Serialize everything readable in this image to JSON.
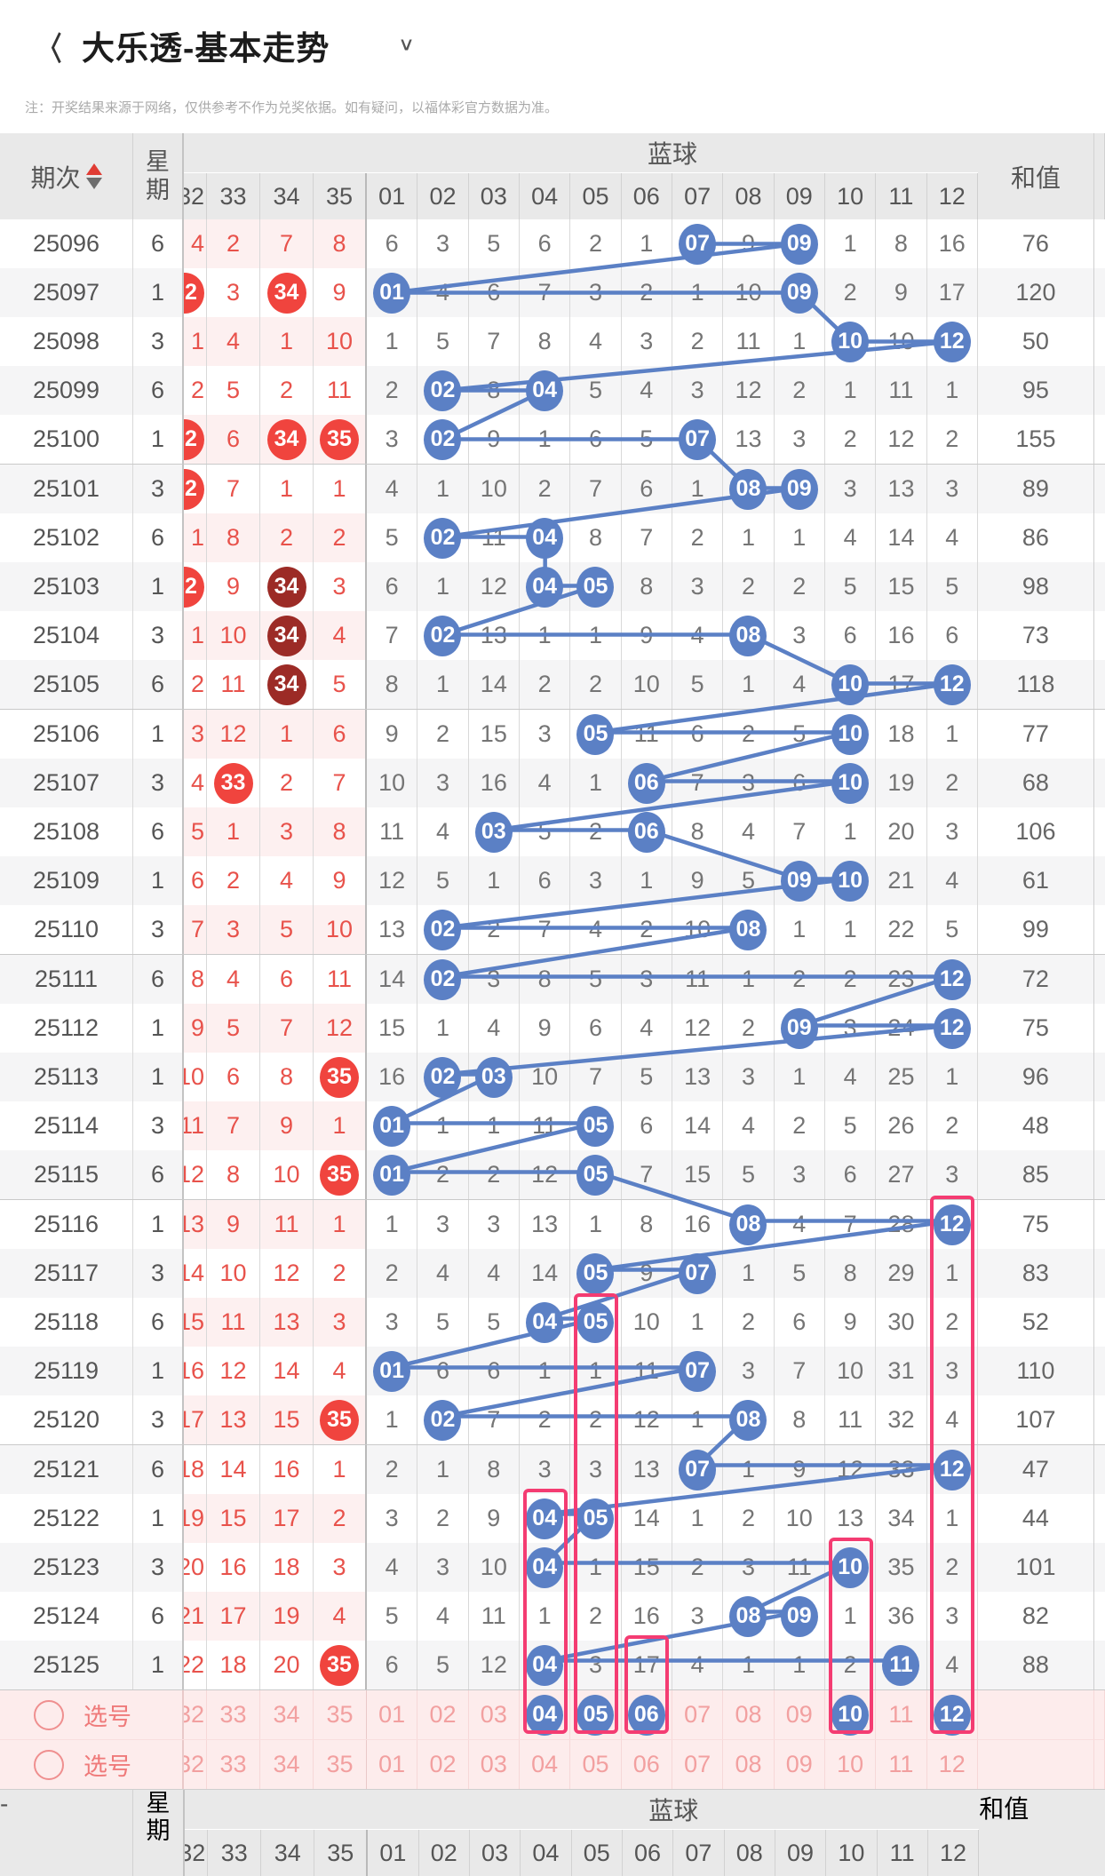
{
  "topbar": {
    "title": "大乐透-基本走势"
  },
  "note": "注：开奖结果来源于网络，仅供参考不作为兑奖依据。如有疑问，以福体彩官方数据为准。",
  "colors": {
    "blue": "#5b80c5",
    "red_circle": "#f0443e",
    "dark_red_circle": "#9c2b26",
    "red_text": "#e8524b",
    "pink_box": "#f43c72",
    "selection_bg": "#fdecec",
    "header_bg": "#e9e9e9",
    "zebra_main": "#f5f5f6",
    "zebra_red": "#fdf0f0"
  },
  "trend": {
    "header": {
      "period": "期次",
      "week": "星期",
      "blue_group": "蓝球",
      "sum": "和值",
      "red_cols": [
        "32",
        "33",
        "34",
        "35"
      ],
      "blue_cols": [
        "01",
        "02",
        "03",
        "04",
        "05",
        "06",
        "07",
        "08",
        "09",
        "10",
        "11",
        "12"
      ]
    },
    "rows": [
      {
        "period": "25096",
        "week": "6",
        "reds": [
          "4",
          "2",
          "7",
          "8"
        ],
        "red_hits": [],
        "red_dark": [],
        "blues": [
          "6",
          "3",
          "5",
          "6",
          "2",
          "1",
          "07",
          "9",
          "09",
          "1",
          "8",
          "16"
        ],
        "blue_hits": [
          7,
          9
        ],
        "sum": "76"
      },
      {
        "period": "25097",
        "week": "1",
        "reds": [
          "32",
          "3",
          "34",
          "9"
        ],
        "red_hits": [
          0,
          2
        ],
        "red_dark": [],
        "blues": [
          "01",
          "4",
          "6",
          "7",
          "3",
          "2",
          "1",
          "10",
          "09",
          "2",
          "9",
          "17"
        ],
        "blue_hits": [
          1,
          9
        ],
        "sum": "120"
      },
      {
        "period": "25098",
        "week": "3",
        "reds": [
          "1",
          "4",
          "1",
          "10"
        ],
        "red_hits": [],
        "red_dark": [],
        "blues": [
          "1",
          "5",
          "7",
          "8",
          "4",
          "3",
          "2",
          "11",
          "1",
          "10",
          "10",
          "12"
        ],
        "blue_hits": [
          10,
          12
        ],
        "sum": "50"
      },
      {
        "period": "25099",
        "week": "6",
        "reds": [
          "2",
          "5",
          "2",
          "11"
        ],
        "red_hits": [],
        "red_dark": [],
        "blues": [
          "2",
          "02",
          "8",
          "04",
          "5",
          "4",
          "3",
          "12",
          "2",
          "1",
          "11",
          "1"
        ],
        "blue_hits": [
          2,
          4
        ],
        "sum": "95"
      },
      {
        "period": "25100",
        "week": "1",
        "reds": [
          "32",
          "6",
          "34",
          "35"
        ],
        "red_hits": [
          0,
          2,
          3
        ],
        "red_dark": [],
        "blues": [
          "3",
          "02",
          "9",
          "1",
          "6",
          "5",
          "07",
          "13",
          "3",
          "2",
          "12",
          "2"
        ],
        "blue_hits": [
          2,
          7
        ],
        "sum": "155"
      },
      {
        "period": "25101",
        "week": "3",
        "reds": [
          "32",
          "7",
          "1",
          "1"
        ],
        "red_hits": [
          0
        ],
        "red_dark": [],
        "blues": [
          "4",
          "1",
          "10",
          "2",
          "7",
          "6",
          "1",
          "08",
          "09",
          "3",
          "13",
          "3"
        ],
        "blue_hits": [
          8,
          9
        ],
        "sum": "89"
      },
      {
        "period": "25102",
        "week": "6",
        "reds": [
          "1",
          "8",
          "2",
          "2"
        ],
        "red_hits": [],
        "red_dark": [],
        "blues": [
          "5",
          "02",
          "11",
          "04",
          "8",
          "7",
          "2",
          "1",
          "1",
          "4",
          "14",
          "4"
        ],
        "blue_hits": [
          2,
          4
        ],
        "sum": "86"
      },
      {
        "period": "25103",
        "week": "1",
        "reds": [
          "32",
          "9",
          "34",
          "3"
        ],
        "red_hits": [
          0,
          2
        ],
        "red_dark": [
          2
        ],
        "blues": [
          "6",
          "1",
          "12",
          "04",
          "05",
          "8",
          "3",
          "2",
          "2",
          "5",
          "15",
          "5"
        ],
        "blue_hits": [
          4,
          5
        ],
        "sum": "98"
      },
      {
        "period": "25104",
        "week": "3",
        "reds": [
          "1",
          "10",
          "34",
          "4"
        ],
        "red_hits": [
          2
        ],
        "red_dark": [
          2
        ],
        "blues": [
          "7",
          "02",
          "13",
          "1",
          "1",
          "9",
          "4",
          "08",
          "3",
          "6",
          "16",
          "6"
        ],
        "blue_hits": [
          2,
          8
        ],
        "sum": "73"
      },
      {
        "period": "25105",
        "week": "6",
        "reds": [
          "2",
          "11",
          "34",
          "5"
        ],
        "red_hits": [
          2
        ],
        "red_dark": [
          2
        ],
        "blues": [
          "8",
          "1",
          "14",
          "2",
          "2",
          "10",
          "5",
          "1",
          "4",
          "10",
          "17",
          "12"
        ],
        "blue_hits": [
          10,
          12
        ],
        "sum": "118"
      },
      {
        "period": "25106",
        "week": "1",
        "reds": [
          "3",
          "12",
          "1",
          "6"
        ],
        "red_hits": [],
        "red_dark": [],
        "blues": [
          "9",
          "2",
          "15",
          "3",
          "05",
          "11",
          "6",
          "2",
          "5",
          "10",
          "18",
          "1"
        ],
        "blue_hits": [
          5,
          10
        ],
        "sum": "77"
      },
      {
        "period": "25107",
        "week": "3",
        "reds": [
          "4",
          "33",
          "2",
          "7"
        ],
        "red_hits": [
          1
        ],
        "red_dark": [],
        "blues": [
          "10",
          "3",
          "16",
          "4",
          "1",
          "06",
          "7",
          "3",
          "6",
          "10",
          "19",
          "2"
        ],
        "blue_hits": [
          6,
          10
        ],
        "sum": "68"
      },
      {
        "period": "25108",
        "week": "6",
        "reds": [
          "5",
          "1",
          "3",
          "8"
        ],
        "red_hits": [],
        "red_dark": [],
        "blues": [
          "11",
          "4",
          "03",
          "5",
          "2",
          "06",
          "8",
          "4",
          "7",
          "1",
          "20",
          "3"
        ],
        "blue_hits": [
          3,
          6
        ],
        "sum": "106"
      },
      {
        "period": "25109",
        "week": "1",
        "reds": [
          "6",
          "2",
          "4",
          "9"
        ],
        "red_hits": [],
        "red_dark": [],
        "blues": [
          "12",
          "5",
          "1",
          "6",
          "3",
          "1",
          "9",
          "5",
          "09",
          "10",
          "21",
          "4"
        ],
        "blue_hits": [
          9,
          10
        ],
        "sum": "61"
      },
      {
        "period": "25110",
        "week": "3",
        "reds": [
          "7",
          "3",
          "5",
          "10"
        ],
        "red_hits": [],
        "red_dark": [],
        "blues": [
          "13",
          "02",
          "2",
          "7",
          "4",
          "2",
          "10",
          "08",
          "1",
          "1",
          "22",
          "5"
        ],
        "blue_hits": [
          2,
          8
        ],
        "sum": "99"
      },
      {
        "period": "25111",
        "week": "6",
        "reds": [
          "8",
          "4",
          "6",
          "11"
        ],
        "red_hits": [],
        "red_dark": [],
        "blues": [
          "14",
          "02",
          "3",
          "8",
          "5",
          "3",
          "11",
          "1",
          "2",
          "2",
          "23",
          "12"
        ],
        "blue_hits": [
          2,
          12
        ],
        "sum": "72"
      },
      {
        "period": "25112",
        "week": "1",
        "reds": [
          "9",
          "5",
          "7",
          "12"
        ],
        "red_hits": [],
        "red_dark": [],
        "blues": [
          "15",
          "1",
          "4",
          "9",
          "6",
          "4",
          "12",
          "2",
          "09",
          "3",
          "24",
          "12"
        ],
        "blue_hits": [
          9,
          12
        ],
        "sum": "75"
      },
      {
        "period": "25113",
        "week": "1",
        "reds": [
          "10",
          "6",
          "8",
          "35"
        ],
        "red_hits": [
          3
        ],
        "red_dark": [],
        "blues": [
          "16",
          "02",
          "03",
          "10",
          "7",
          "5",
          "13",
          "3",
          "1",
          "4",
          "25",
          "1"
        ],
        "blue_hits": [
          2,
          3
        ],
        "sum": "96"
      },
      {
        "period": "25114",
        "week": "3",
        "reds": [
          "11",
          "7",
          "9",
          "1"
        ],
        "red_hits": [],
        "red_dark": [],
        "blues": [
          "01",
          "1",
          "1",
          "11",
          "05",
          "6",
          "14",
          "4",
          "2",
          "5",
          "26",
          "2"
        ],
        "blue_hits": [
          1,
          5
        ],
        "sum": "48"
      },
      {
        "period": "25115",
        "week": "6",
        "reds": [
          "12",
          "8",
          "10",
          "35"
        ],
        "red_hits": [
          3
        ],
        "red_dark": [],
        "blues": [
          "01",
          "2",
          "2",
          "12",
          "05",
          "7",
          "15",
          "5",
          "3",
          "6",
          "27",
          "3"
        ],
        "blue_hits": [
          1,
          5
        ],
        "sum": "85"
      },
      {
        "period": "25116",
        "week": "1",
        "reds": [
          "13",
          "9",
          "11",
          "1"
        ],
        "red_hits": [],
        "red_dark": [],
        "blues": [
          "1",
          "3",
          "3",
          "13",
          "1",
          "8",
          "16",
          "08",
          "4",
          "7",
          "28",
          "12"
        ],
        "blue_hits": [
          8,
          12
        ],
        "sum": "75"
      },
      {
        "period": "25117",
        "week": "3",
        "reds": [
          "14",
          "10",
          "12",
          "2"
        ],
        "red_hits": [],
        "red_dark": [],
        "blues": [
          "2",
          "4",
          "4",
          "14",
          "05",
          "9",
          "07",
          "1",
          "5",
          "8",
          "29",
          "1"
        ],
        "blue_hits": [
          5,
          7
        ],
        "sum": "83"
      },
      {
        "period": "25118",
        "week": "6",
        "reds": [
          "15",
          "11",
          "13",
          "3"
        ],
        "red_hits": [],
        "red_dark": [],
        "blues": [
          "3",
          "5",
          "5",
          "04",
          "05",
          "10",
          "1",
          "2",
          "6",
          "9",
          "30",
          "2"
        ],
        "blue_hits": [
          4,
          5
        ],
        "sum": "52"
      },
      {
        "period": "25119",
        "week": "1",
        "reds": [
          "16",
          "12",
          "14",
          "4"
        ],
        "red_hits": [],
        "red_dark": [],
        "blues": [
          "01",
          "6",
          "6",
          "1",
          "1",
          "11",
          "07",
          "3",
          "7",
          "10",
          "31",
          "3"
        ],
        "blue_hits": [
          1,
          7
        ],
        "sum": "110"
      },
      {
        "period": "25120",
        "week": "3",
        "reds": [
          "17",
          "13",
          "15",
          "35"
        ],
        "red_hits": [
          3
        ],
        "red_dark": [],
        "blues": [
          "1",
          "02",
          "7",
          "2",
          "2",
          "12",
          "1",
          "08",
          "8",
          "11",
          "32",
          "4"
        ],
        "blue_hits": [
          2,
          8
        ],
        "sum": "107"
      },
      {
        "period": "25121",
        "week": "6",
        "reds": [
          "18",
          "14",
          "16",
          "1"
        ],
        "red_hits": [],
        "red_dark": [],
        "blues": [
          "2",
          "1",
          "8",
          "3",
          "3",
          "13",
          "07",
          "1",
          "9",
          "12",
          "33",
          "12"
        ],
        "blue_hits": [
          7,
          12
        ],
        "sum": "47"
      },
      {
        "period": "25122",
        "week": "1",
        "reds": [
          "19",
          "15",
          "17",
          "2"
        ],
        "red_hits": [],
        "red_dark": [],
        "blues": [
          "3",
          "2",
          "9",
          "04",
          "05",
          "14",
          "1",
          "2",
          "10",
          "13",
          "34",
          "1"
        ],
        "blue_hits": [
          4,
          5
        ],
        "sum": "44"
      },
      {
        "period": "25123",
        "week": "3",
        "reds": [
          "20",
          "16",
          "18",
          "3"
        ],
        "red_hits": [],
        "red_dark": [],
        "blues": [
          "4",
          "3",
          "10",
          "04",
          "1",
          "15",
          "2",
          "3",
          "11",
          "10",
          "35",
          "2"
        ],
        "blue_hits": [
          4,
          10
        ],
        "sum": "101"
      },
      {
        "period": "25124",
        "week": "6",
        "reds": [
          "21",
          "17",
          "19",
          "4"
        ],
        "red_hits": [],
        "red_dark": [],
        "blues": [
          "5",
          "4",
          "11",
          "1",
          "2",
          "16",
          "3",
          "08",
          "09",
          "1",
          "36",
          "3"
        ],
        "blue_hits": [
          8,
          9
        ],
        "sum": "82"
      },
      {
        "period": "25125",
        "week": "1",
        "reds": [
          "22",
          "18",
          "20",
          "35"
        ],
        "red_hits": [
          3
        ],
        "red_dark": [],
        "blues": [
          "6",
          "5",
          "12",
          "04",
          "3",
          "17",
          "4",
          "1",
          "1",
          "2",
          "11",
          "4"
        ],
        "blue_hits": [
          4,
          11
        ],
        "sum": "88"
      }
    ],
    "highlight_boxes": [
      {
        "col": 4,
        "from_period": "25122"
      },
      {
        "col": 5,
        "from_period": "25118"
      },
      {
        "col": 6,
        "from_period": "25125"
      },
      {
        "col": 10,
        "from_period": "25123"
      },
      {
        "col": 12,
        "from_period": "25116"
      }
    ]
  },
  "selection_rows": [
    {
      "label": "选号",
      "reds": [
        "32",
        "33",
        "34",
        "35"
      ],
      "blues": [
        "01",
        "02",
        "03",
        "04",
        "05",
        "06",
        "07",
        "08",
        "09",
        "10",
        "11",
        "12"
      ],
      "selected": [
        4,
        5,
        6,
        10,
        12
      ]
    },
    {
      "label": "选号",
      "reds": [
        "32",
        "33",
        "34",
        "35"
      ],
      "blues": [
        "01",
        "02",
        "03",
        "04",
        "05",
        "06",
        "07",
        "08",
        "09",
        "10",
        "11",
        "12"
      ],
      "selected": []
    }
  ],
  "bottom_header": {
    "period": "-",
    "week": "星期",
    "blue_group": "蓝球",
    "sum": "和值",
    "red_cols": [
      "32",
      "33",
      "34",
      "35"
    ],
    "blue_cols": [
      "01",
      "02",
      "03",
      "04",
      "05",
      "06",
      "07",
      "08",
      "09",
      "10",
      "11",
      "12"
    ]
  }
}
